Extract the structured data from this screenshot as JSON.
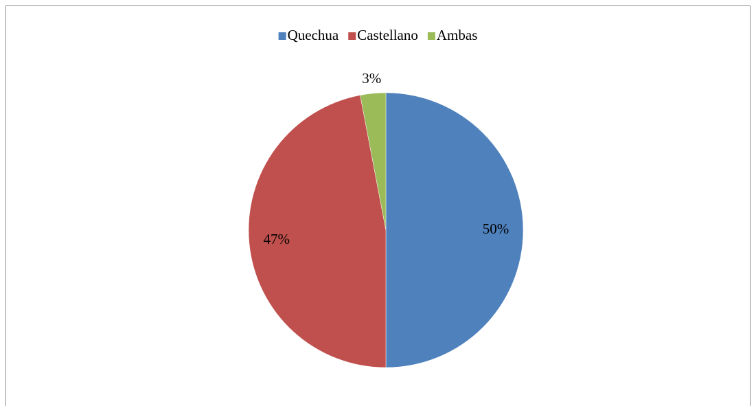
{
  "chart_data": {
    "type": "pie",
    "categories": [
      "Quechua",
      "Castellano",
      "Ambas"
    ],
    "values": [
      50,
      47,
      3
    ],
    "value_labels": [
      "50%",
      "47%",
      "3%"
    ],
    "colors": [
      "#4f81bd",
      "#c0504d",
      "#9bbb59"
    ],
    "legend": "top"
  }
}
